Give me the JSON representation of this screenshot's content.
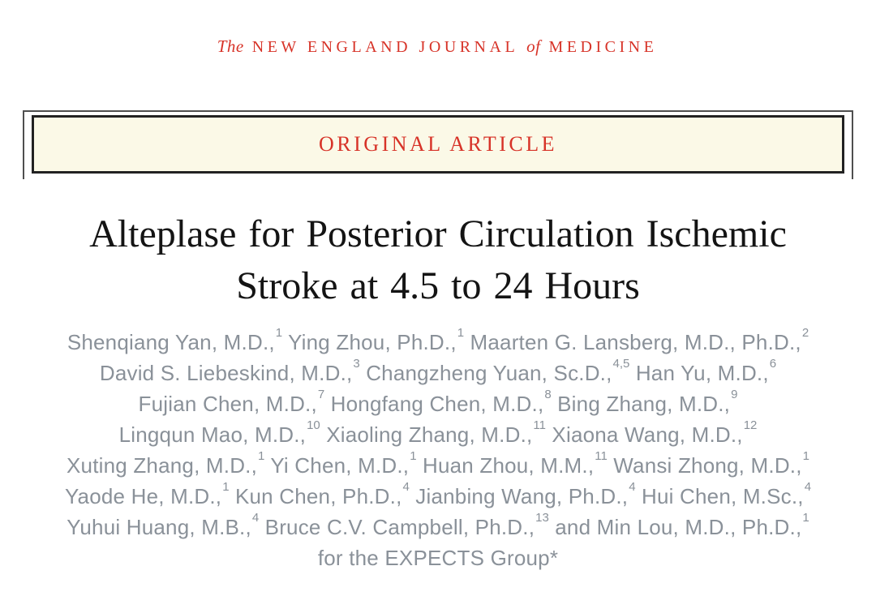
{
  "colors": {
    "nejm_red": "#d73328",
    "banner_bg": "#fbf9e7",
    "banner_border": "#222222",
    "frame_rule": "#4f4f4f",
    "author_text": "#8a9199",
    "title_text": "#141414",
    "page_bg": "#ffffff"
  },
  "masthead": {
    "segments": [
      {
        "text": "The",
        "italic": true
      },
      {
        "text": "NEW ENGLAND JOURNAL",
        "italic": false
      },
      {
        "text": "of",
        "italic": true
      },
      {
        "text": "MEDICINE",
        "italic": false
      }
    ]
  },
  "banner": {
    "label": "ORIGINAL ARTICLE"
  },
  "article": {
    "title_lines": [
      "Alteplase for Posterior Circulation Ischemic",
      "Stroke at 4.5 to 24 Hours"
    ],
    "author_lines": [
      [
        {
          "text": "Shenqiang Yan, M.D.,"
        },
        {
          "text": "1",
          "sup": true
        },
        {
          "text": " Ying Zhou, Ph.D.,"
        },
        {
          "text": "1",
          "sup": true
        },
        {
          "text": " Maarten G. Lansberg, M.D., Ph.D.,"
        },
        {
          "text": "2",
          "sup": true
        }
      ],
      [
        {
          "text": "David S. Liebeskind, M.D.,"
        },
        {
          "text": "3",
          "sup": true
        },
        {
          "text": " Changzheng Yuan, Sc.D.,"
        },
        {
          "text": "4,5",
          "sup": true
        },
        {
          "text": " Han Yu, M.D.,"
        },
        {
          "text": "6",
          "sup": true
        }
      ],
      [
        {
          "text": "Fujian Chen, M.D.,"
        },
        {
          "text": "7",
          "sup": true
        },
        {
          "text": " Hongfang Chen, M.D.,"
        },
        {
          "text": "8",
          "sup": true
        },
        {
          "text": " Bing Zhang, M.D.,"
        },
        {
          "text": "9",
          "sup": true
        }
      ],
      [
        {
          "text": "Lingqun Mao, M.D.,"
        },
        {
          "text": "10",
          "sup": true
        },
        {
          "text": " Xiaoling Zhang, M.D.,"
        },
        {
          "text": "11",
          "sup": true
        },
        {
          "text": " Xiaona Wang, M.D.,"
        },
        {
          "text": "12",
          "sup": true
        }
      ],
      [
        {
          "text": "Xuting Zhang, M.D.,"
        },
        {
          "text": "1",
          "sup": true
        },
        {
          "text": " Yi Chen, M.D.,"
        },
        {
          "text": "1",
          "sup": true
        },
        {
          "text": " Huan Zhou, M.M.,"
        },
        {
          "text": "11",
          "sup": true
        },
        {
          "text": " Wansi Zhong, M.D.,"
        },
        {
          "text": "1",
          "sup": true
        }
      ],
      [
        {
          "text": "Yaode He, M.D.,"
        },
        {
          "text": "1",
          "sup": true
        },
        {
          "text": " Kun Chen, Ph.D.,"
        },
        {
          "text": "4",
          "sup": true
        },
        {
          "text": " Jianbing Wang, Ph.D.,"
        },
        {
          "text": "4",
          "sup": true
        },
        {
          "text": " Hui Chen, M.Sc.,"
        },
        {
          "text": "4",
          "sup": true
        }
      ],
      [
        {
          "text": "Yuhui Huang, M.B.,"
        },
        {
          "text": "4",
          "sup": true
        },
        {
          "text": " Bruce C.V. Campbell, Ph.D.,"
        },
        {
          "text": "13",
          "sup": true
        },
        {
          "text": " and Min Lou, M.D., Ph.D.,"
        },
        {
          "text": "1",
          "sup": true
        }
      ],
      [
        {
          "text": "for the EXPECTS Group*"
        }
      ]
    ]
  }
}
